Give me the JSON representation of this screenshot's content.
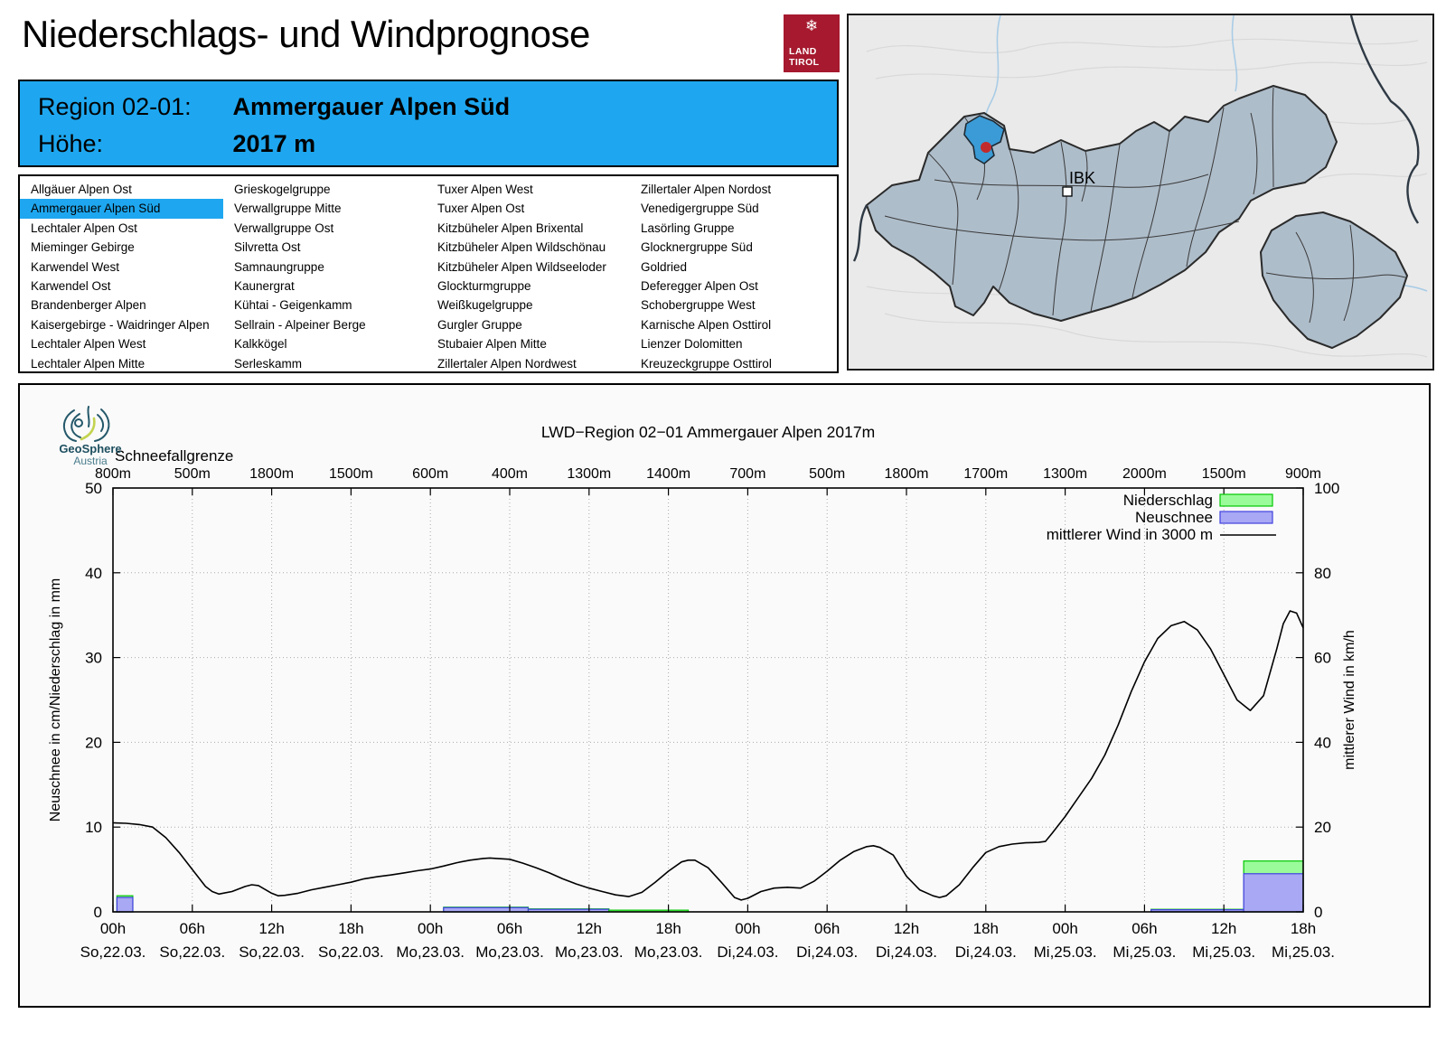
{
  "header": {
    "title": "Niederschlags- und Windprognose",
    "logo_line1": "LAND",
    "logo_line2": "TIROL",
    "logo_snowflake": "❄"
  },
  "region_header": {
    "region_label": "Region 02-01:",
    "region_value": "Ammergauer Alpen Süd",
    "altitude_label": "Höhe:",
    "altitude_value": "2017 m"
  },
  "region_list": {
    "selected": "Ammergauer Alpen Süd",
    "columns": [
      [
        "Allgäuer Alpen Ost",
        "Ammergauer Alpen Süd",
        "Lechtaler Alpen Ost",
        "Mieminger Gebirge",
        "Karwendel West",
        "Karwendel Ost",
        "Brandenberger Alpen",
        "Kaisergebirge - Waidringer Alpen",
        "Lechtaler Alpen West",
        "Lechtaler Alpen Mitte"
      ],
      [
        "Grieskogelgruppe",
        "Verwallgruppe Mitte",
        "Verwallgruppe Ost",
        "Silvretta Ost",
        "Samnaungruppe",
        "Kaunergrat",
        "Kühtai - Geigenkamm",
        "Sellrain - Alpeiner Berge",
        "Kalkkögel",
        "Serleskamm"
      ],
      [
        "Tuxer Alpen West",
        "Tuxer Alpen Ost",
        "Kitzbüheler Alpen Brixental",
        "Kitzbüheler Alpen Wildschönau",
        "Kitzbüheler Alpen Wildseeloder",
        "Glockturmgruppe",
        "Weißkugelgruppe",
        "Gurgler Gruppe",
        "Stubaier Alpen Mitte",
        "Zillertaler Alpen Nordwest"
      ],
      [
        "Zillertaler Alpen Nordost",
        "Venedigergruppe Süd",
        "Lasörling Gruppe",
        "Glocknergruppe Süd",
        "Goldried",
        "Deferegger Alpen Ost",
        "Schobergruppe West",
        "Karnische Alpen Osttirol",
        "Lienzer Dolomitten",
        "Kreuzeckgruppe Osttirol"
      ]
    ]
  },
  "map": {
    "ibk_label": "IBK"
  },
  "attribution": {
    "geosphere_line1": "GeoSphere",
    "geosphere_line2": "Austria"
  },
  "colors": {
    "accent_blue": "#1ea7f0",
    "logo_red": "#a6192e",
    "precip_fill": "#9afb9a",
    "precip_border": "#00c800",
    "snow_fill": "#a8a8f4",
    "snow_border": "#4040e0",
    "wind_line": "#000000",
    "map_region_fill": "#aebdca",
    "map_highlight": "#3b9bd6",
    "map_dot_red": "#c22b2b"
  },
  "chart_data": {
    "type": "bar+line",
    "title": "LWD−Region 02−01 Ammergauer Alpen 2017m",
    "top_axis": {
      "label": "Schneefallgrenze",
      "unit": "m",
      "values": [
        800,
        500,
        1800,
        1500,
        600,
        400,
        1300,
        1400,
        700,
        500,
        1800,
        1700,
        1300,
        2000,
        1500,
        900
      ]
    },
    "x_hours_range": [
      0,
      90
    ],
    "x_tick_step_hours": 6,
    "x_ticks": [
      {
        "hour": "00h",
        "day": "So,22.03."
      },
      {
        "hour": "06h",
        "day": "So,22.03."
      },
      {
        "hour": "12h",
        "day": "So,22.03."
      },
      {
        "hour": "18h",
        "day": "So,22.03."
      },
      {
        "hour": "00h",
        "day": "Mo,23.03."
      },
      {
        "hour": "06h",
        "day": "Mo,23.03."
      },
      {
        "hour": "12h",
        "day": "Mo,23.03."
      },
      {
        "hour": "18h",
        "day": "Mo,23.03."
      },
      {
        "hour": "00h",
        "day": "Di,24.03."
      },
      {
        "hour": "06h",
        "day": "Di,24.03."
      },
      {
        "hour": "12h",
        "day": "Di,24.03."
      },
      {
        "hour": "18h",
        "day": "Di,24.03."
      },
      {
        "hour": "00h",
        "day": "Mi,25.03."
      },
      {
        "hour": "06h",
        "day": "Mi,25.03."
      },
      {
        "hour": "12h",
        "day": "Mi,25.03."
      },
      {
        "hour": "18h",
        "day": "Mi,25.03."
      }
    ],
    "ylabel_left": "Neuschnee in cm/Niederschlag in mm",
    "ylim_left": [
      0,
      50
    ],
    "yticks_left": [
      0,
      10,
      20,
      30,
      40,
      50
    ],
    "ylabel_right": "mittlerer Wind in km/h",
    "ylim_right": [
      0,
      100
    ],
    "yticks_right": [
      0,
      20,
      40,
      60,
      80,
      100
    ],
    "grid": true,
    "legend": [
      {
        "label": "Niederschlag",
        "type": "box",
        "role": "precip"
      },
      {
        "label": "Neuschnee",
        "type": "box",
        "role": "snow"
      },
      {
        "label": "mittlerer Wind in 3000 m",
        "type": "line",
        "role": "wind"
      }
    ],
    "bar_series": [
      {
        "t_from": 0.3,
        "t_to": 1.5,
        "niederschlag_mm": 1.9,
        "neuschnee_cm": 1.7
      },
      {
        "t_from": 25.0,
        "t_to": 31.4,
        "niederschlag_mm": 0.55,
        "neuschnee_cm": 0.5
      },
      {
        "t_from": 31.4,
        "t_to": 37.5,
        "niederschlag_mm": 0.35,
        "neuschnee_cm": 0.3
      },
      {
        "t_from": 37.5,
        "t_to": 43.5,
        "niederschlag_mm": 0.2,
        "neuschnee_cm": 0
      },
      {
        "t_from": 78.5,
        "t_to": 85.5,
        "niederschlag_mm": 0.3,
        "neuschnee_cm": 0.25
      },
      {
        "t_from": 85.5,
        "t_to": 90.0,
        "niederschlag_mm": 6.0,
        "neuschnee_cm": 4.5
      }
    ],
    "line_series": {
      "name": "mittlerer Wind in 3000 m",
      "axis": "right",
      "unit": "km/h",
      "points": [
        [
          0,
          21
        ],
        [
          1,
          20.9
        ],
        [
          2,
          20.6
        ],
        [
          3,
          20
        ],
        [
          4,
          17.5
        ],
        [
          5,
          14
        ],
        [
          6,
          10
        ],
        [
          7,
          6
        ],
        [
          7.5,
          4.8
        ],
        [
          8,
          4.2
        ],
        [
          9,
          4.8
        ],
        [
          10,
          6
        ],
        [
          10.5,
          6.4
        ],
        [
          11,
          6.2
        ],
        [
          12,
          4.4
        ],
        [
          12.5,
          3.8
        ],
        [
          13,
          3.9
        ],
        [
          14,
          4.4
        ],
        [
          15,
          5.2
        ],
        [
          16,
          5.8
        ],
        [
          17,
          6.4
        ],
        [
          18,
          7
        ],
        [
          19,
          7.8
        ],
        [
          20,
          8.3
        ],
        [
          21,
          8.7
        ],
        [
          22,
          9.2
        ],
        [
          23,
          9.7
        ],
        [
          24,
          10.1
        ],
        [
          25,
          10.8
        ],
        [
          26,
          11.6
        ],
        [
          27,
          12.2
        ],
        [
          28,
          12.6
        ],
        [
          28.5,
          12.7
        ],
        [
          29,
          12.6
        ],
        [
          30,
          12.4
        ],
        [
          31,
          11.5
        ],
        [
          32,
          10.4
        ],
        [
          33,
          9.2
        ],
        [
          34,
          7.8
        ],
        [
          35,
          6.6
        ],
        [
          36,
          5.6
        ],
        [
          37,
          4.8
        ],
        [
          38,
          4
        ],
        [
          39,
          3.6
        ],
        [
          40,
          4.6
        ],
        [
          41,
          7
        ],
        [
          42,
          9.6
        ],
        [
          43,
          11.8
        ],
        [
          43.5,
          12.2
        ],
        [
          44,
          12.2
        ],
        [
          45,
          10.4
        ],
        [
          46,
          7
        ],
        [
          47,
          3.4
        ],
        [
          47.5,
          2.8
        ],
        [
          48,
          3.2
        ],
        [
          49,
          4.8
        ],
        [
          50,
          5.6
        ],
        [
          51,
          5.8
        ],
        [
          52,
          5.6
        ],
        [
          53,
          7.2
        ],
        [
          54,
          9.6
        ],
        [
          55,
          12.2
        ],
        [
          56,
          14.2
        ],
        [
          57,
          15.4
        ],
        [
          57.5,
          15.6
        ],
        [
          58,
          15.2
        ],
        [
          59,
          13.4
        ],
        [
          60,
          8.4
        ],
        [
          61,
          5.2
        ],
        [
          62,
          3.8
        ],
        [
          62.5,
          3.4
        ],
        [
          63,
          3.8
        ],
        [
          64,
          6.4
        ],
        [
          65,
          10.4
        ],
        [
          66,
          14
        ],
        [
          67,
          15.4
        ],
        [
          68,
          16
        ],
        [
          69,
          16.3
        ],
        [
          70,
          16.4
        ],
        [
          70.5,
          16.6
        ],
        [
          71,
          18.5
        ],
        [
          72,
          22.5
        ],
        [
          73,
          27
        ],
        [
          74,
          31.5
        ],
        [
          75,
          37
        ],
        [
          76,
          44
        ],
        [
          77,
          52
        ],
        [
          78,
          59
        ],
        [
          79,
          64.5
        ],
        [
          80,
          67.5
        ],
        [
          81,
          68.5
        ],
        [
          82,
          66.5
        ],
        [
          83,
          62
        ],
        [
          84,
          56
        ],
        [
          85,
          50
        ],
        [
          86,
          47.5
        ],
        [
          87,
          51
        ],
        [
          88,
          62
        ],
        [
          88.5,
          68
        ],
        [
          89,
          71
        ],
        [
          89.5,
          70.5
        ],
        [
          90,
          67
        ]
      ]
    }
  }
}
